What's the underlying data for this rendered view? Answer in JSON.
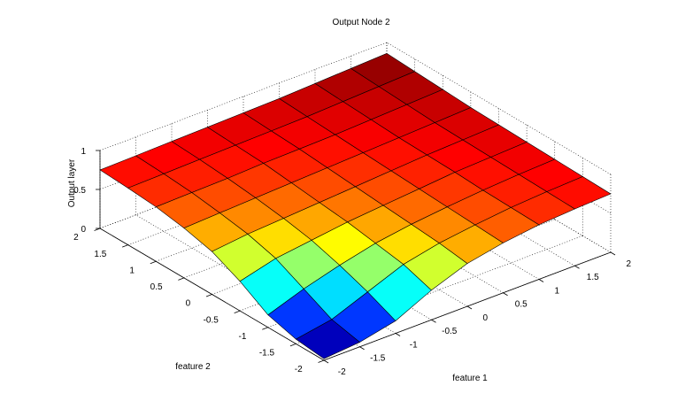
{
  "chart_data": {
    "type": "surface",
    "title": "Output Node 2",
    "xlabel": "feature 1",
    "ylabel": "feature 2",
    "zlabel": "Output layer",
    "xlim": [
      -2,
      2
    ],
    "ylim": [
      -2,
      2
    ],
    "zlim": [
      0,
      1
    ],
    "x_ticks": [
      "-2",
      "-1.5",
      "-1",
      "-0.5",
      "0",
      "0.5",
      "1",
      "1.5",
      "2"
    ],
    "y_ticks": [
      "-2",
      "-1.5",
      "-1",
      "-0.5",
      "0",
      "0.5",
      "1",
      "1.5",
      "2"
    ],
    "z_ticks": [
      "0",
      "0.5",
      "1"
    ],
    "grid": true,
    "colormap": "jet",
    "surface_x": [
      -2,
      -1.5,
      -1,
      -0.5,
      0,
      0.5,
      1,
      1.5,
      2
    ],
    "surface_y": [
      -2,
      -1.5,
      -1,
      -0.5,
      0,
      0.5,
      1,
      1.5,
      2
    ],
    "surface_z": [
      [
        0.02,
        0.06,
        0.16,
        0.38,
        0.55,
        0.64,
        0.7,
        0.73,
        0.75
      ],
      [
        0.06,
        0.14,
        0.32,
        0.5,
        0.6,
        0.66,
        0.71,
        0.74,
        0.76
      ],
      [
        0.16,
        0.32,
        0.45,
        0.56,
        0.63,
        0.68,
        0.72,
        0.75,
        0.77
      ],
      [
        0.38,
        0.5,
        0.56,
        0.62,
        0.66,
        0.7,
        0.74,
        0.76,
        0.78
      ],
      [
        0.55,
        0.6,
        0.63,
        0.66,
        0.69,
        0.72,
        0.75,
        0.77,
        0.79
      ],
      [
        0.64,
        0.66,
        0.68,
        0.7,
        0.72,
        0.74,
        0.76,
        0.78,
        0.8
      ],
      [
        0.7,
        0.71,
        0.72,
        0.74,
        0.75,
        0.76,
        0.78,
        0.8,
        0.82
      ],
      [
        0.73,
        0.74,
        0.75,
        0.76,
        0.77,
        0.78,
        0.8,
        0.82,
        0.84
      ],
      [
        0.75,
        0.76,
        0.77,
        0.78,
        0.79,
        0.8,
        0.82,
        0.84,
        0.86
      ]
    ]
  }
}
